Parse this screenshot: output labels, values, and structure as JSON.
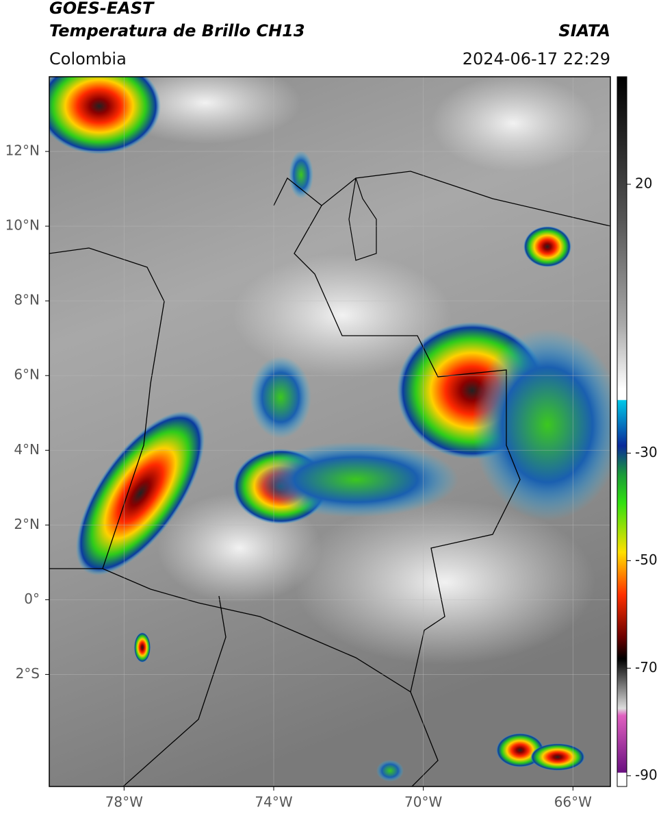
{
  "header": {
    "title_line1": "GOES-EAST",
    "title_line2": "Temperatura de Brillo CH13",
    "region": "Colombia",
    "source": "SIATA",
    "timestamp": "2024-06-17 22:29"
  },
  "map": {
    "xlim": [
      -80,
      -65
    ],
    "ylim": [
      -5,
      14
    ],
    "xticks": [
      {
        "value": -78,
        "label": "78°W"
      },
      {
        "value": -74,
        "label": "74°W"
      },
      {
        "value": -70,
        "label": "70°W"
      },
      {
        "value": -66,
        "label": "66°W"
      }
    ],
    "yticks": [
      {
        "value": -2,
        "label": "2°S"
      },
      {
        "value": 0,
        "label": "0°"
      },
      {
        "value": 2,
        "label": "2°N"
      },
      {
        "value": 4,
        "label": "4°N"
      },
      {
        "value": 6,
        "label": "6°N"
      },
      {
        "value": 8,
        "label": "8°N"
      },
      {
        "value": 10,
        "label": "10°N"
      },
      {
        "value": 12,
        "label": "12°N"
      }
    ],
    "grid": true
  },
  "colorbar": {
    "lim": [
      -92,
      40
    ],
    "ticks": [
      20,
      -30,
      -50,
      -70,
      -90
    ]
  }
}
